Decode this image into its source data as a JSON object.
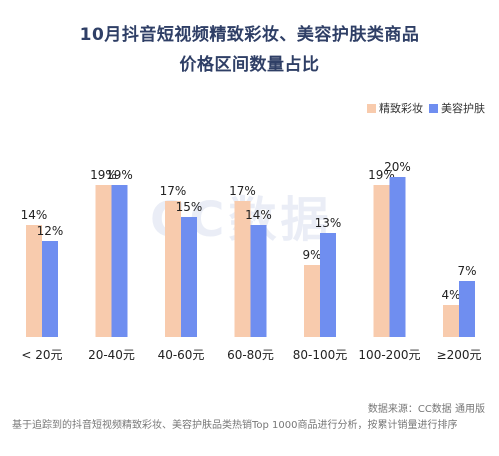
{
  "title": {
    "line1": "10月抖音短视频精致彩妆、美容护肤类商品",
    "line2": "价格区间数量占比"
  },
  "watermark": "CC数据",
  "footer": {
    "source": "数据来源：CC数据 通用版",
    "note": "基于追踪到的抖音短视频精致彩妆、美容护肤品类热销Top 1000商品进行分析，按累计销量进行排序"
  },
  "colors": {
    "series1": "#f8cbad",
    "series2": "#6f8ef0",
    "title": "#2f3f66"
  },
  "chart_data": {
    "type": "bar",
    "categories": [
      "< 20元",
      "20-40元",
      "40-60元",
      "60-80元",
      "80-100元",
      "100-200元",
      "≥200元"
    ],
    "series": [
      {
        "name": "精致彩妆",
        "values": [
          14,
          19,
          17,
          17,
          9,
          19,
          4
        ]
      },
      {
        "name": "美容护肤",
        "values": [
          12,
          19,
          15,
          14,
          13,
          20,
          7
        ]
      }
    ],
    "ylim": [
      0,
      20
    ],
    "grid": false,
    "legend": "top-right",
    "value_suffix": "%"
  }
}
